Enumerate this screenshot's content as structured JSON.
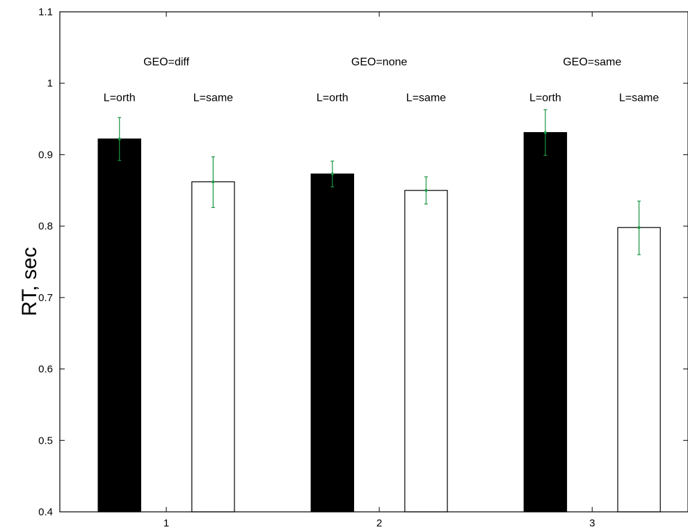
{
  "chart_data": {
    "type": "bar",
    "title": "",
    "xlabel": "",
    "ylabel": "RT, sec",
    "ylim": [
      0.4,
      1.1
    ],
    "yticks": [
      0.4,
      0.5,
      0.6,
      0.7,
      0.8,
      0.9,
      1.0,
      1.1
    ],
    "ytick_labels": [
      "0.4",
      "0.5",
      "0.6",
      "0.7",
      "0.8",
      "0.9",
      "1",
      "1.1"
    ],
    "xticks": [
      1,
      2,
      3
    ],
    "xtick_labels": [
      "1",
      "2",
      "3"
    ],
    "xlim": [
      0.5,
      3.45
    ],
    "grid": false,
    "colors": {
      "orth_fill": "#000000",
      "same_fill": "#ffffff",
      "errorbar": "#1a9641"
    },
    "groups": [
      {
        "label": "GEO=diff",
        "bars": [
          {
            "label": "L=orth",
            "x": 0.78,
            "value": 0.922,
            "error_low": 0.892,
            "error_high": 0.952,
            "fill": "orth_fill"
          },
          {
            "label": "L=same",
            "x": 1.22,
            "value": 0.862,
            "error_low": 0.826,
            "error_high": 0.897,
            "fill": "same_fill"
          }
        ]
      },
      {
        "label": "GEO=none",
        "bars": [
          {
            "label": "L=orth",
            "x": 1.78,
            "value": 0.873,
            "error_low": 0.855,
            "error_high": 0.891,
            "fill": "orth_fill"
          },
          {
            "label": "L=same",
            "x": 2.22,
            "value": 0.85,
            "error_low": 0.831,
            "error_high": 0.869,
            "fill": "same_fill"
          }
        ]
      },
      {
        "label": "GEO=same",
        "bars": [
          {
            "label": "L=orth",
            "x": 2.78,
            "value": 0.931,
            "error_low": 0.899,
            "error_high": 0.963,
            "fill": "orth_fill"
          },
          {
            "label": "L=same",
            "x": 3.22,
            "value": 0.798,
            "error_low": 0.76,
            "error_high": 0.835,
            "fill": "same_fill"
          }
        ]
      }
    ],
    "bar_width": 0.2,
    "group_label_y": 1.03,
    "bar_label_y": 0.98
  }
}
